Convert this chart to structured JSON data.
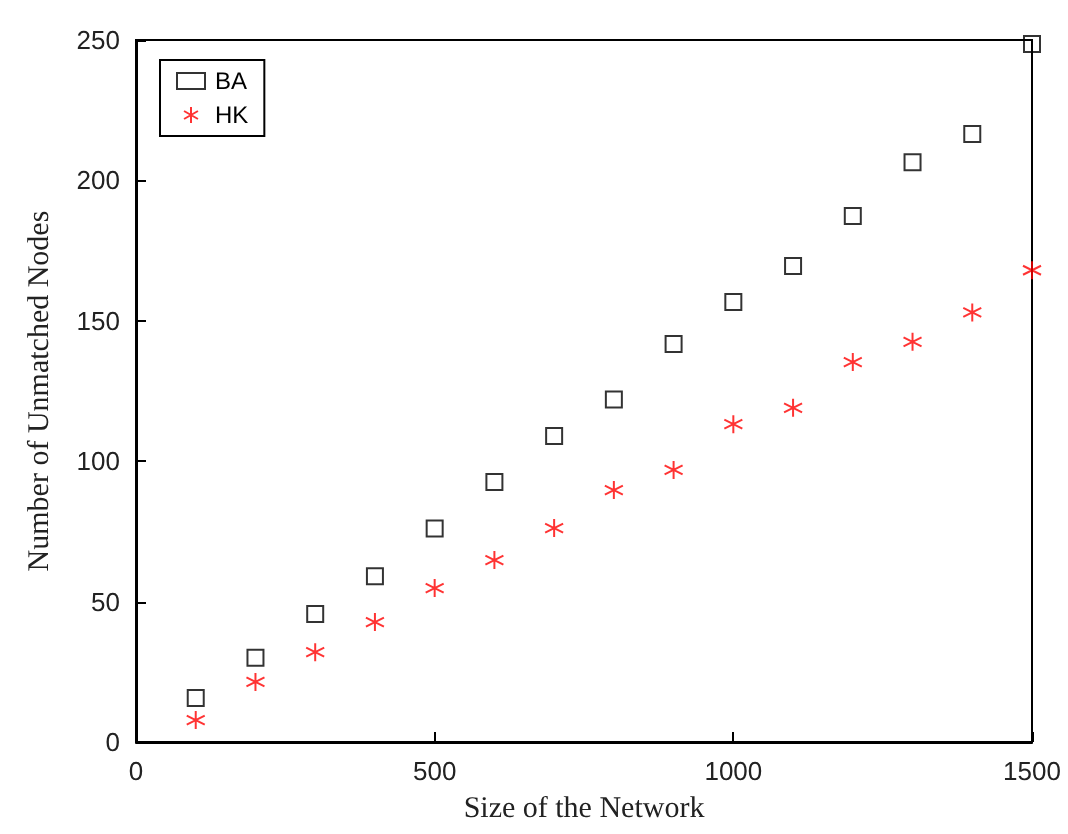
{
  "chart_data": {
    "type": "scatter",
    "xlabel": "Size of the Network",
    "ylabel": "Number of Unmatched Nodes",
    "x": [
      100,
      200,
      300,
      400,
      500,
      600,
      700,
      800,
      900,
      1000,
      1100,
      1200,
      1300,
      1400,
      1500
    ],
    "series": [
      {
        "name": "BA",
        "color": "#000000",
        "marker": "square",
        "values": [
          15.7,
          30,
          45.6,
          59,
          76,
          92.6,
          109,
          122,
          141.7,
          156.7,
          169.5,
          187.3,
          206.5,
          216.5,
          248.6
        ]
      },
      {
        "name": "HK",
        "color": "#ff0000",
        "marker": "cross",
        "values": [
          7.8,
          21.4,
          32,
          42.7,
          54.8,
          64.8,
          76.2,
          89.7,
          96.9,
          113.2,
          119,
          135.3,
          142.5,
          153,
          168
        ]
      }
    ],
    "xlim": [
      0,
      1500
    ],
    "xticks": [
      0,
      500,
      1000,
      1500
    ],
    "ylim": [
      0,
      250
    ],
    "yticks": [
      0,
      50,
      100,
      150,
      200,
      250
    ],
    "grid": false,
    "legend": "top left"
  }
}
